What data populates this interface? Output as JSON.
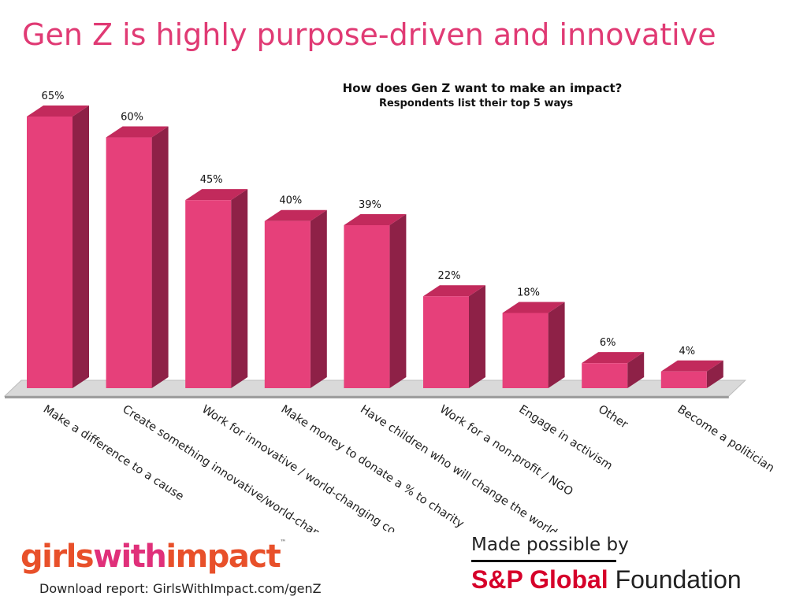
{
  "page": {
    "title": "Gen Z is highly purpose-driven and innovative"
  },
  "chart_data": {
    "type": "bar",
    "title": "How does Gen Z want to make an impact?",
    "subtitle": "Respondents list their top 5 ways",
    "categories": [
      "Make a difference to a cause",
      "Create something innovative/world-changing",
      "Work for innovative / world-changing co.",
      "Make money to donate a % to charity",
      "Have children who will change the world",
      "Work for a non-profit / NGO",
      "Engage in activism",
      "Other",
      "Become a politician"
    ],
    "values": [
      65,
      60,
      45,
      40,
      39,
      22,
      18,
      6,
      4
    ],
    "data_labels": [
      "65%",
      "60%",
      "45%",
      "40%",
      "39%",
      "22%",
      "18%",
      "6%",
      "4%"
    ],
    "ylim": [
      0,
      65
    ],
    "style": "3d-bar",
    "grid": false,
    "legend": "none",
    "colors": {
      "bar_front": "#e6407a",
      "bar_top": "#c22a5c",
      "bar_side": "#8e2147",
      "floor": "#d9d9d9"
    }
  },
  "footer": {
    "logo": {
      "part1": "girls",
      "part2": "with",
      "part3": "impact",
      "tm": "™"
    },
    "download": "Download report: GirlsWithImpact.com/genZ",
    "sponsor_line": "Made possible by",
    "sponsor_brand": "S&P Global",
    "sponsor_suffix": "Foundation"
  }
}
